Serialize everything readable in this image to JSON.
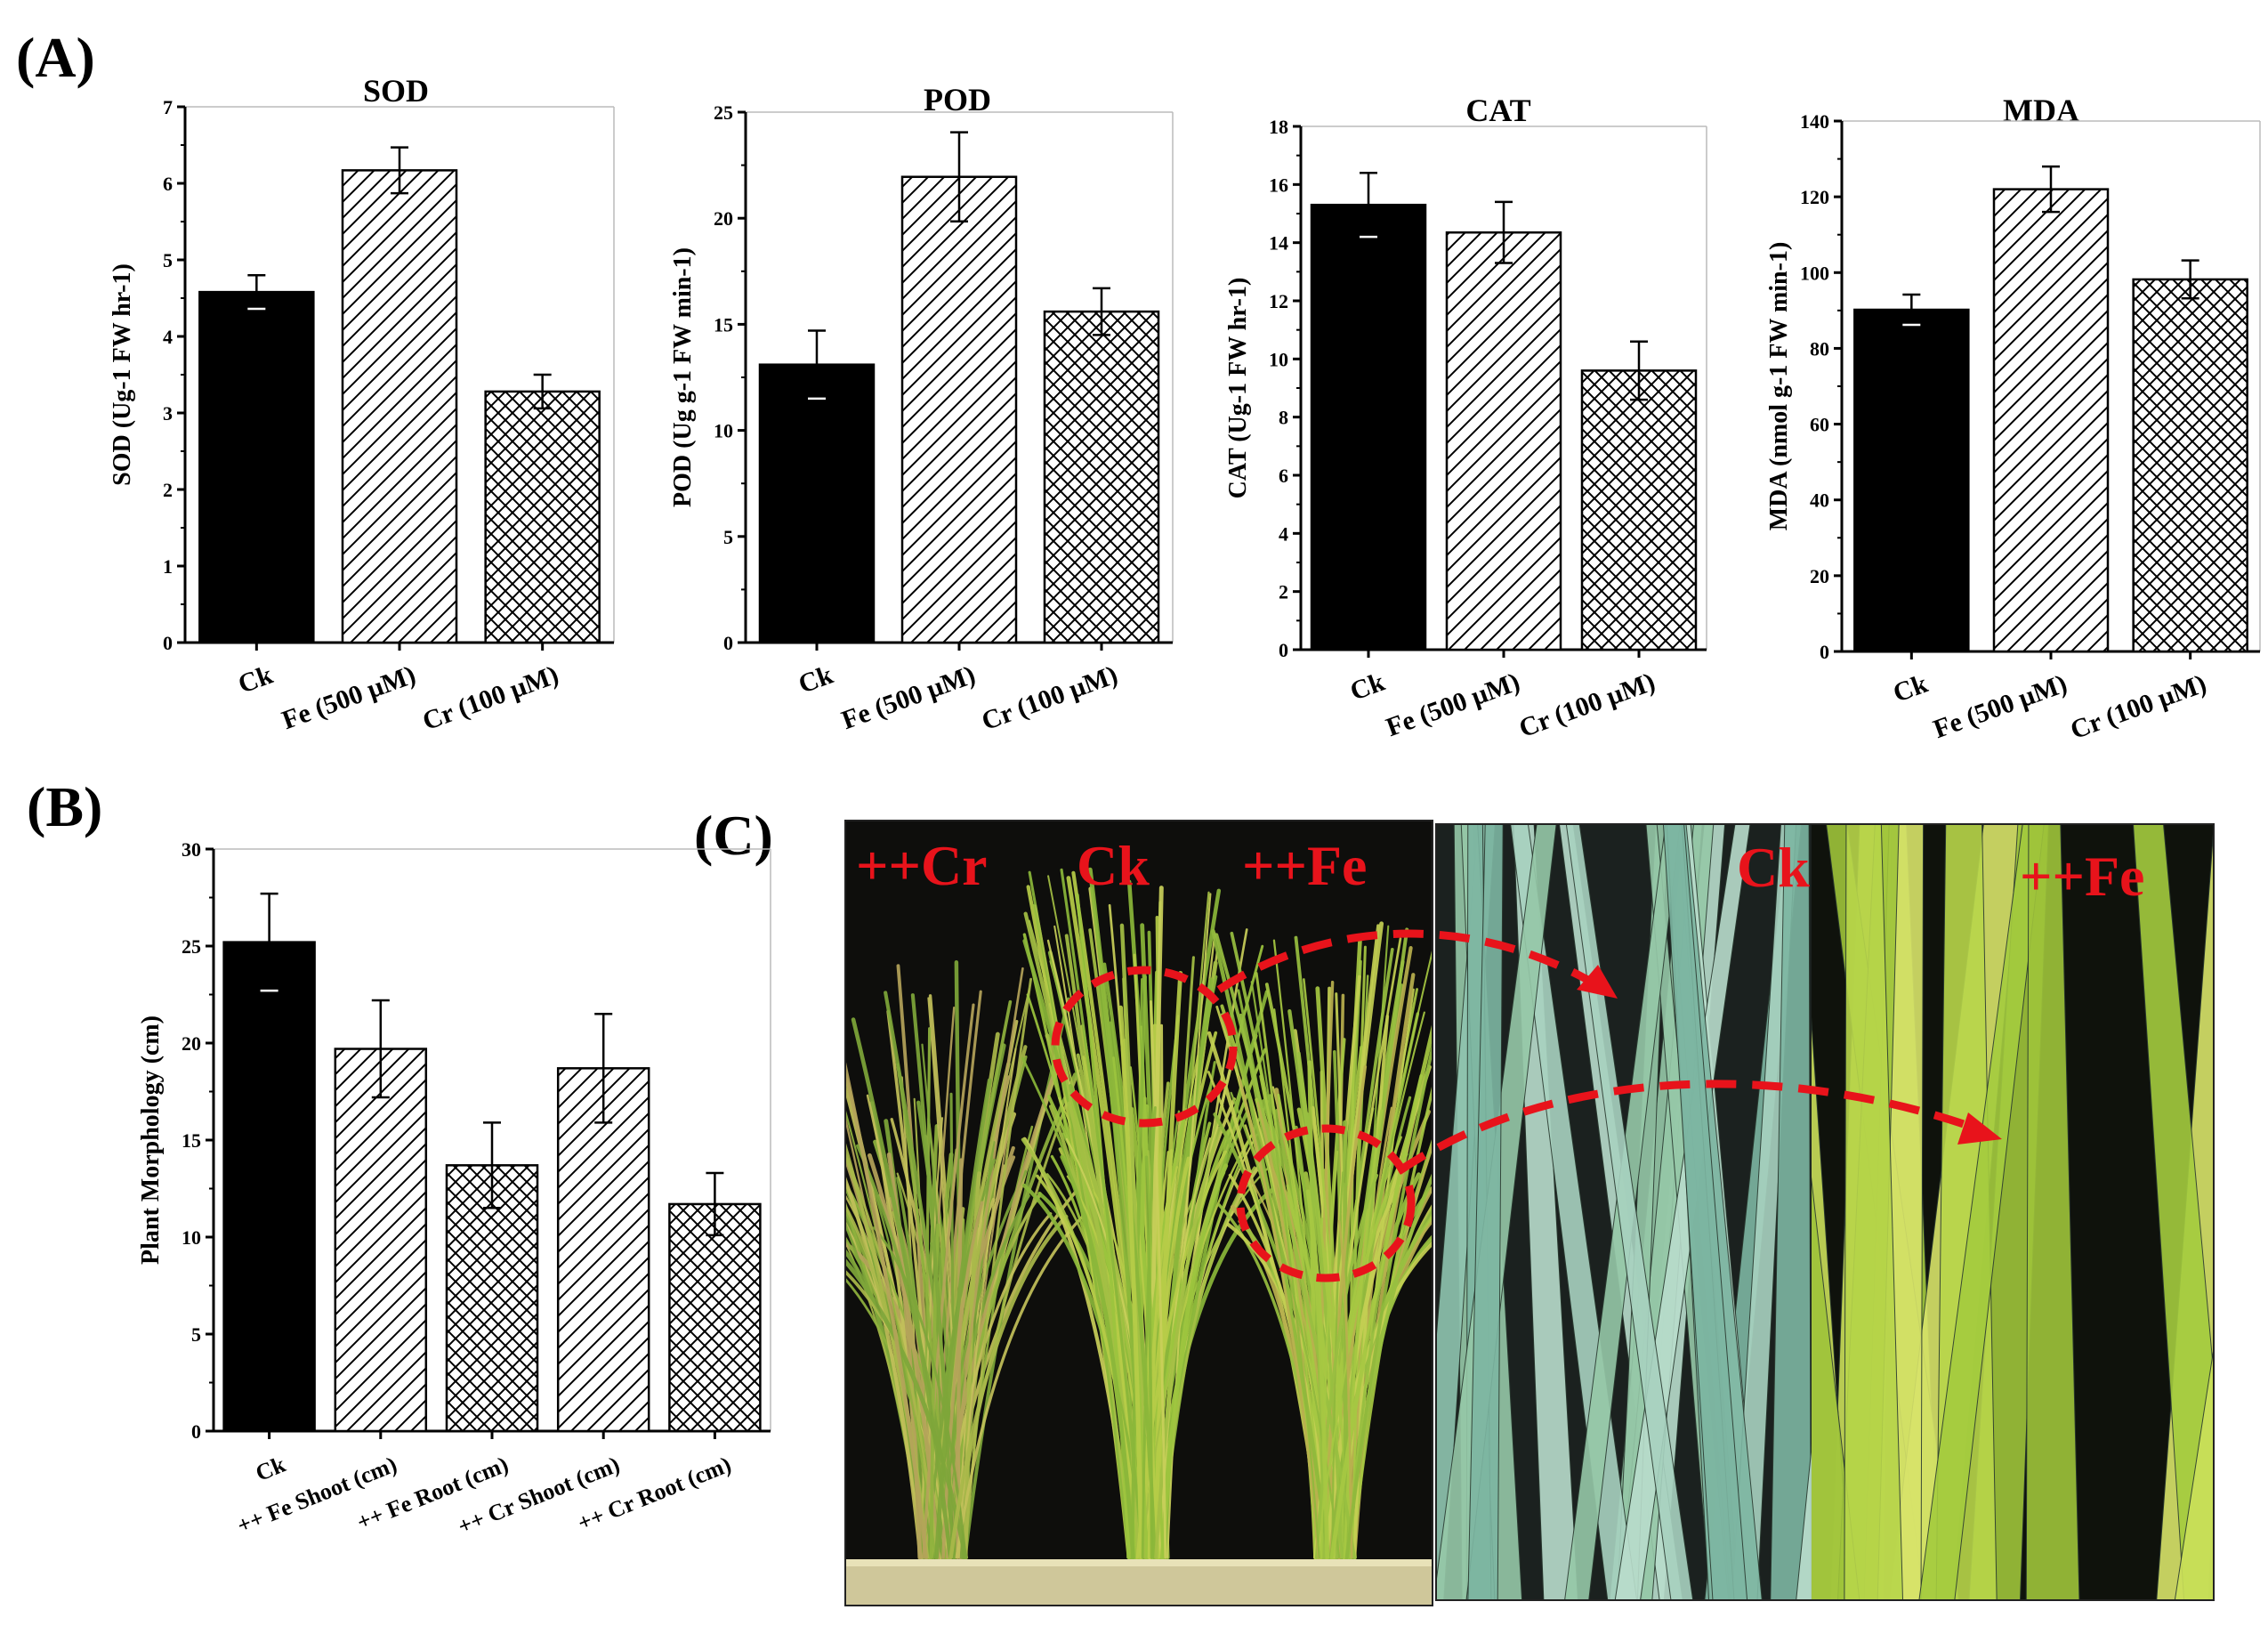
{
  "panel_labels": {
    "a": "(A)",
    "b": "(B)",
    "c": "(C)"
  },
  "colors": {
    "bar_solid": "#000000",
    "annotation_red": "#e8131b",
    "photo_bg": "#0e0e0c",
    "leaf_green": "#8ec23a",
    "leaf_yellow": "#c8d24a",
    "leaf_blue_green": "#8fc4b0"
  },
  "chart_data": [
    {
      "id": "sod",
      "type": "bar",
      "title": "SOD",
      "ylabel": "SOD (Ug-1 FW hr-1)",
      "categories": [
        "Ck",
        "Fe (500 μM)",
        "Cr (100 μM)"
      ],
      "values": [
        4.58,
        6.17,
        3.28
      ],
      "errors": [
        0.22,
        0.3,
        0.22
      ],
      "patterns": [
        "solid",
        "diagonal",
        "crosshatch"
      ],
      "ylim": [
        0,
        7
      ],
      "yticks": [
        0,
        1,
        2,
        3,
        4,
        5,
        6,
        7
      ],
      "yticklabels": [
        "0",
        "1",
        "2",
        "3",
        "4",
        "5",
        "6",
        "7"
      ]
    },
    {
      "id": "pod",
      "type": "bar",
      "title": "POD",
      "ylabel": "POD (Ug g-1 FW min-1)",
      "categories": [
        "Ck",
        "Fe (500 μM)",
        "Cr (100 μM)"
      ],
      "values": [
        13.1,
        21.95,
        15.6
      ],
      "errors": [
        1.6,
        2.1,
        1.1
      ],
      "patterns": [
        "solid",
        "diagonal",
        "crosshatch"
      ],
      "ylim": [
        0,
        25
      ],
      "yticks": [
        0,
        5,
        10,
        15,
        20,
        25
      ],
      "yticklabels": [
        "0",
        "5",
        "10",
        "15",
        "20",
        "25"
      ]
    },
    {
      "id": "cat",
      "type": "bar",
      "title": "CAT",
      "ylabel": "CAT (Ug-1 FW hr-1)",
      "categories": [
        "Ck",
        "Fe (500 μM)",
        "Cr (100 μM)"
      ],
      "values": [
        15.3,
        14.35,
        9.6
      ],
      "errors": [
        1.1,
        1.05,
        1.0
      ],
      "patterns": [
        "solid",
        "diagonal",
        "crosshatch"
      ],
      "ylim": [
        0,
        18
      ],
      "yticks": [
        0,
        2,
        4,
        6,
        8,
        10,
        12,
        14,
        16,
        18
      ],
      "yticklabels": [
        "0",
        "2",
        "4",
        "6",
        "8",
        "10",
        "12",
        "14",
        "16",
        "18"
      ]
    },
    {
      "id": "mda",
      "type": "bar",
      "title": "MDA",
      "ylabel": "MDA (nmol g-1 FW min-1)",
      "categories": [
        "Ck",
        "Fe (500 μM)",
        "Cr (100 μM)"
      ],
      "values": [
        90.2,
        122,
        98.2
      ],
      "errors": [
        4.0,
        6.0,
        5.0
      ],
      "patterns": [
        "solid",
        "diagonal",
        "crosshatch"
      ],
      "ylim": [
        0,
        140
      ],
      "yticks": [
        0,
        20,
        40,
        60,
        80,
        100,
        120,
        140
      ],
      "yticklabels": [
        "0",
        "20",
        "40",
        "60",
        "80",
        "100",
        "120",
        "140"
      ]
    },
    {
      "id": "morph",
      "type": "bar",
      "title": "",
      "ylabel": "Plant Morphology (cm)",
      "categories": [
        "Ck",
        "++ Fe Shoot (cm)",
        "++ Fe Root (cm)",
        "++ Cr Shoot (cm)",
        "++ Cr Root (cm)"
      ],
      "values": [
        25.2,
        19.7,
        13.7,
        18.7,
        11.7
      ],
      "errors": [
        2.5,
        2.5,
        2.2,
        2.8,
        1.6
      ],
      "patterns": [
        "solid",
        "diagonal",
        "crosshatch",
        "diagonal",
        "crosshatch"
      ],
      "ylim": [
        0,
        30
      ],
      "yticks": [
        0,
        5,
        10,
        15,
        20,
        25,
        30
      ],
      "yticklabels": [
        "0",
        "5",
        "10",
        "15",
        "20",
        "25",
        "30"
      ]
    }
  ],
  "photo": {
    "left_labels": [
      "++Cr",
      "Ck",
      "++Fe"
    ],
    "right_labels": [
      "Ck",
      "++Fe"
    ]
  }
}
